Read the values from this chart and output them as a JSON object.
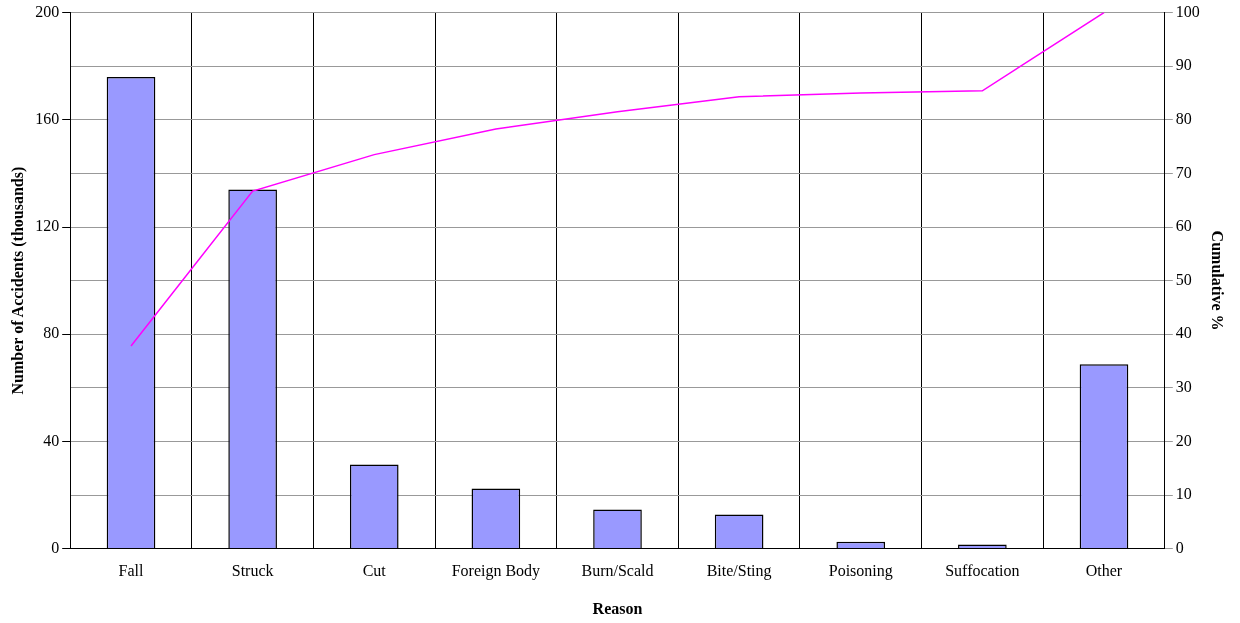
{
  "chart_data": {
    "type": "bar",
    "xlabel": "Reason",
    "ylabel": "Number of Accidents (thousands)",
    "y2label": "Cumulative %",
    "categories": [
      "Fall",
      "Struck",
      "Cut",
      "Foreign Body",
      "Burn/Scald",
      "Bite/Sting",
      "Poisoning",
      "Suffocation",
      "Other"
    ],
    "series": [
      {
        "color": "#9999ff",
        "values": [
          176,
          134,
          31.4,
          22.4,
          14.6,
          12.7,
          2.6,
          1.5,
          68.8
        ]
      },
      {
        "type": "line",
        "axis": "y2",
        "color": "#ff00ff",
        "marker": "none",
        "values": [
          37.8,
          66.7,
          73.5,
          78.3,
          81.5,
          84.3,
          85.0,
          85.4,
          100
        ]
      }
    ],
    "ylim": [
      0,
      200
    ],
    "yticks": [
      0,
      40,
      80,
      120,
      160,
      200
    ],
    "y2lim": [
      0,
      100
    ],
    "y2ticks": [
      0,
      10,
      20,
      30,
      40,
      50,
      60,
      70,
      80,
      90,
      100
    ],
    "grid": true,
    "legend": false
  }
}
